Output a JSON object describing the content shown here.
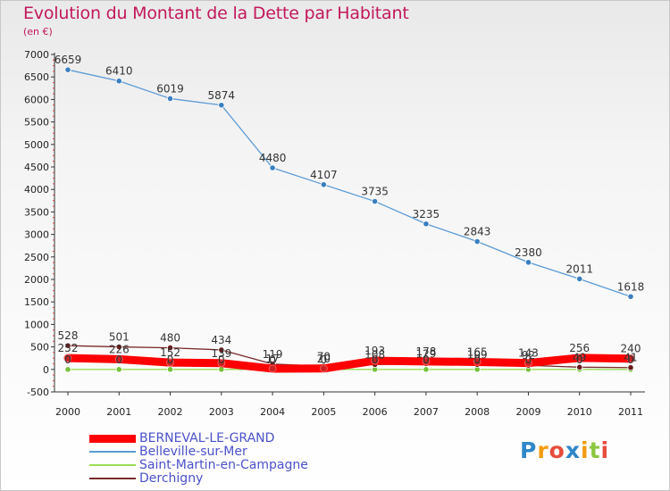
{
  "chart_data": {
    "type": "line",
    "title": "Evolution du Montant de la Dette par Habitant",
    "subtitle": "(en €)",
    "x": [
      "2000",
      "2001",
      "2002",
      "2003",
      "2004",
      "2005",
      "2006",
      "2007",
      "2008",
      "2009",
      "2010",
      "2011"
    ],
    "ylim": [
      -500,
      7000
    ],
    "yticks": [
      -500,
      0,
      500,
      1000,
      1500,
      2000,
      2500,
      3000,
      3500,
      4000,
      4500,
      5000,
      5500,
      6000,
      6500,
      7000
    ],
    "grid": false,
    "legend_position": "bottom-left",
    "series": [
      {
        "name": "BERNEVAL-LE-GRAND",
        "color": "#ff0000",
        "marker_color": "#cc2222",
        "thick": true,
        "values": [
          252,
          226,
          152,
          139,
          17,
          20,
          193,
          178,
          165,
          143,
          256,
          240
        ],
        "labels": [
          "252",
          "226",
          "152",
          "139",
          "17",
          "20",
          "193",
          "178",
          "165",
          "143",
          "256",
          "240"
        ]
      },
      {
        "name": "Belleville-sur-Mer",
        "color": "#5b9bd5",
        "marker_color": "#3a7fc0",
        "thick": false,
        "values": [
          6659,
          6410,
          6019,
          5874,
          4480,
          4107,
          3735,
          3235,
          2843,
          2380,
          2011,
          1618
        ],
        "labels": [
          "6659",
          "6410",
          "6019",
          "5874",
          "4480",
          "4107",
          "3735",
          "3235",
          "2843",
          "2380",
          "2011",
          "1618"
        ]
      },
      {
        "name": "Saint-Martin-en-Campagne",
        "color": "#99dd55",
        "marker_color": "#77c23a",
        "thick": false,
        "values": [
          0,
          0,
          0,
          0,
          0,
          0,
          0,
          0,
          0,
          0,
          0,
          0
        ],
        "labels": [
          "0",
          "0",
          "0",
          "0",
          "0",
          "0",
          "0",
          "0",
          "0",
          "0",
          "0",
          "0"
        ]
      },
      {
        "name": "Derchigny",
        "color": "#7a2a2a",
        "marker_color": "#6a1a1a",
        "thick": false,
        "values": [
          528,
          501,
          480,
          434,
          119,
          70,
          108,
          129,
          109,
          92,
          49,
          41
        ],
        "labels": [
          "528",
          "501",
          "480",
          "434",
          "119",
          "70",
          "108",
          "129",
          "109",
          "92",
          "49",
          "41"
        ]
      }
    ]
  },
  "logo": {
    "letters": [
      "P",
      "r",
      "o",
      "x",
      "i",
      "t",
      "i"
    ],
    "colors": [
      "#2f86c8",
      "#f39c12",
      "#e74c3c",
      "#2f86c8",
      "#f39c12",
      "#8cc63f",
      "#e74c3c"
    ]
  }
}
